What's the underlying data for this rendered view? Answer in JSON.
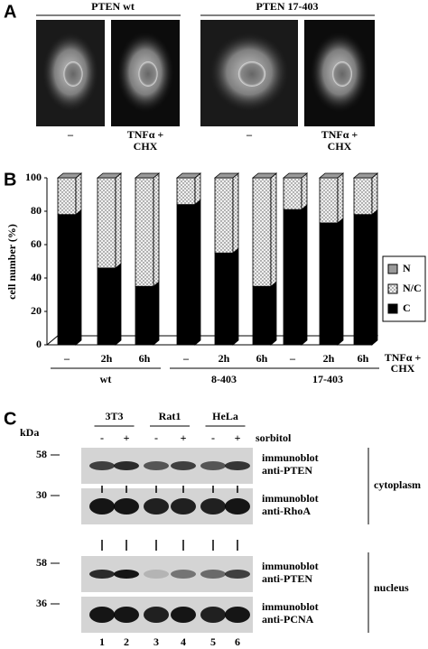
{
  "panel_a": {
    "letter": "A",
    "groups": [
      "PTEN wt",
      "PTEN 17-403"
    ],
    "labels": [
      [
        "–"
      ],
      [
        "TNFα +",
        "CHX"
      ],
      [
        "–"
      ],
      [
        "TNFα +",
        "CHX"
      ]
    ]
  },
  "chart_data": {
    "type": "bar",
    "stacked": true,
    "panel_letter": "B",
    "ylabel": "cell number (%)",
    "categories": [
      "–",
      "2h",
      "6h",
      "–",
      "2h",
      "6h",
      "–",
      "2h",
      "6h"
    ],
    "groups": [
      "wt",
      "8-403",
      "17-403"
    ],
    "treatment_label": [
      "TNFα +",
      "CHX"
    ],
    "series": [
      {
        "name": "C",
        "color": "#000000",
        "values": [
          78,
          46,
          35,
          84,
          55,
          35,
          81,
          73,
          78
        ]
      },
      {
        "name": "N/C",
        "color": "#e6e6e6",
        "pattern": "dots",
        "values": [
          22,
          54,
          65,
          16,
          45,
          65,
          19,
          27,
          22
        ]
      },
      {
        "name": "N",
        "color": "#9a9a9a",
        "values": [
          0,
          0,
          0,
          0,
          0,
          0,
          0,
          0,
          0
        ]
      }
    ],
    "ylim": [
      0,
      100
    ],
    "yticks": [
      0,
      20,
      40,
      60,
      80,
      100
    ]
  },
  "panel_c": {
    "letter": "C",
    "unit": "kDa",
    "cell_lines": [
      "3T3",
      "Rat1",
      "HeLa"
    ],
    "treatment": "sorbitol",
    "lane_signs": [
      "-",
      "+",
      "-",
      "+",
      "-",
      "+"
    ],
    "markers": [
      "58",
      "30",
      "58",
      "36"
    ],
    "blots": [
      [
        "immunoblot",
        "anti-PTEN"
      ],
      [
        "immunoblot",
        "anti-RhoA"
      ],
      [
        "immunoblot",
        "anti-PTEN"
      ],
      [
        "immunoblot",
        "anti-PCNA"
      ]
    ],
    "fractions": [
      "cytoplasm",
      "nucleus"
    ],
    "lanes": [
      "1",
      "2",
      "3",
      "4",
      "5",
      "6"
    ]
  }
}
